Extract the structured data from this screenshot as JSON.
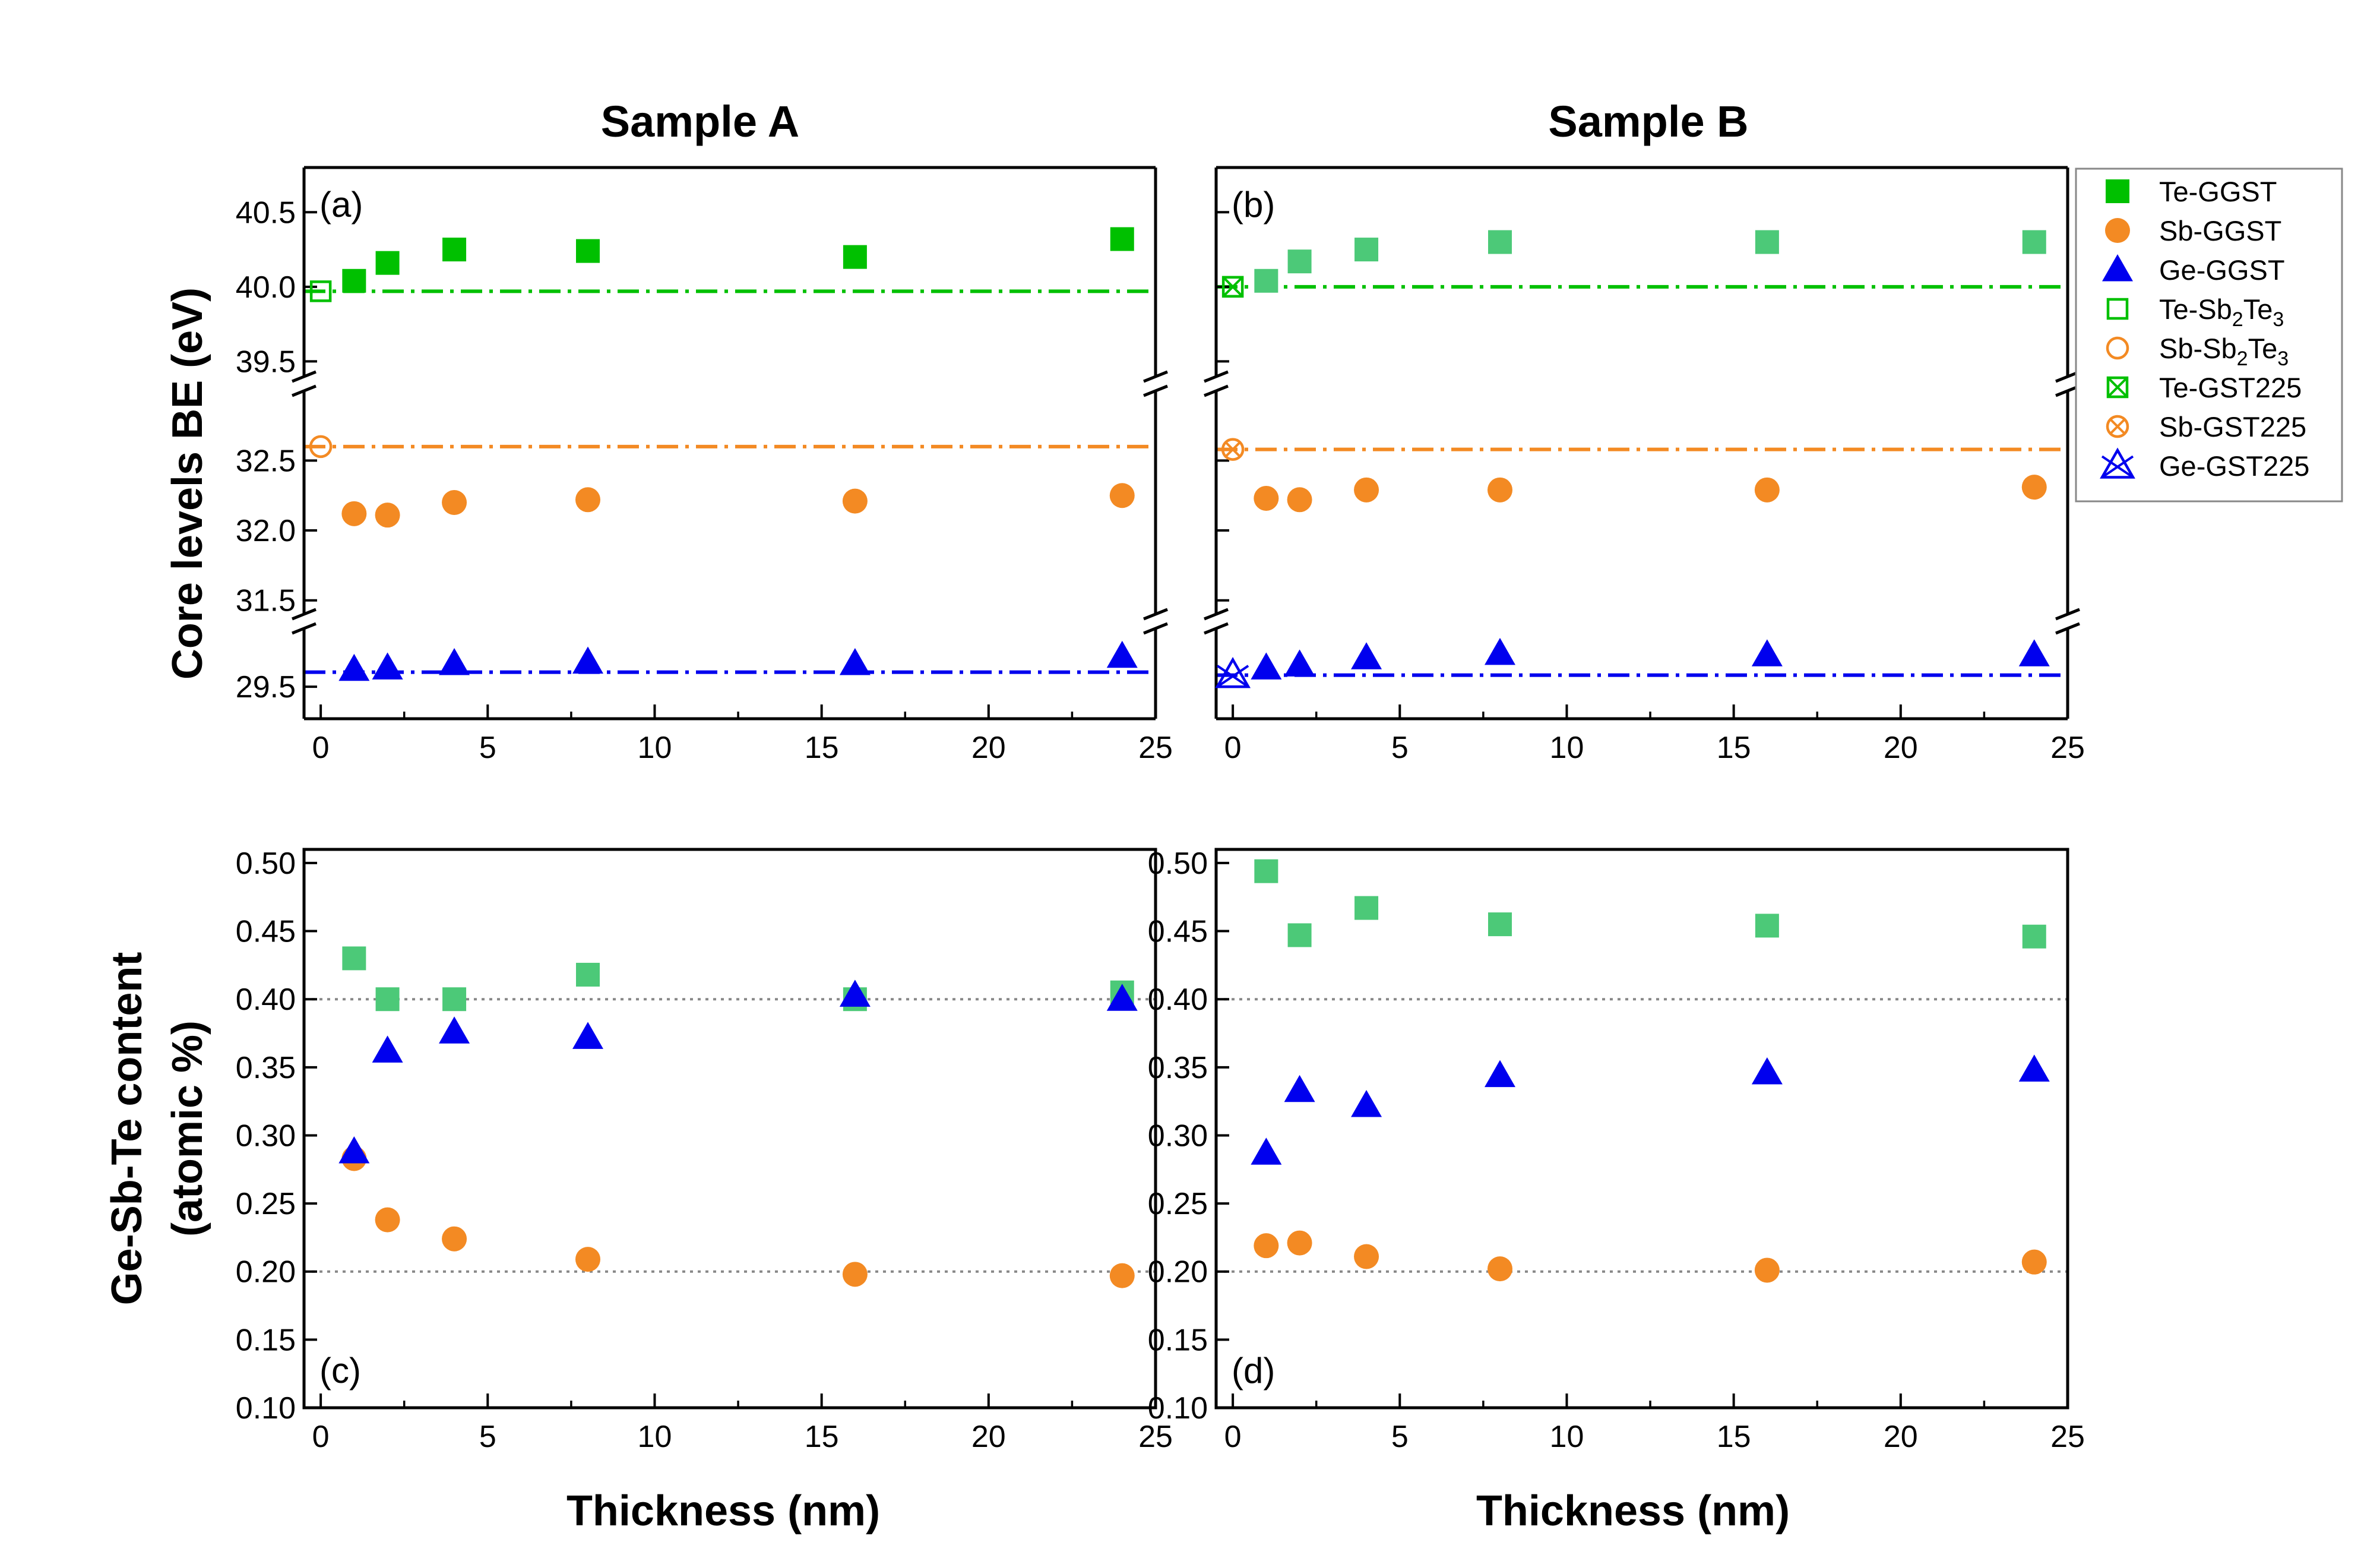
{
  "titles": {
    "sample_a": "Sample A",
    "sample_b": "Sample B"
  },
  "labels": {
    "core_y": "Core levels BE (eV)",
    "content_y1": "Ge-Sb-Te content",
    "content_y2": "(atomic %)",
    "x": "Thickness (nm)",
    "panel_a": "(a)",
    "panel_b": "(b)",
    "panel_c": "(c)",
    "panel_d": "(d)"
  },
  "legend": [
    {
      "name": "Te-GGST",
      "base": "Te-GGST",
      "marker": "square-filled",
      "color": "#00c000"
    },
    {
      "name": "Sb-GGST",
      "base": "Sb-GGST",
      "marker": "circle-filled",
      "color": "#f38a23"
    },
    {
      "name": "Ge-GGST",
      "base": "Ge-GGST",
      "marker": "triangle-filled",
      "color": "#0000ee"
    },
    {
      "name": "Te-Sb2Te3",
      "base": "Te-Sb",
      "sub1": "2",
      "mid": "Te",
      "sub2": "3",
      "marker": "square-open",
      "color": "#00c000"
    },
    {
      "name": "Sb-Sb2Te3",
      "base": "Sb-Sb",
      "sub1": "2",
      "mid": "Te",
      "sub2": "3",
      "marker": "circle-open",
      "color": "#f38a23"
    },
    {
      "name": "Te-GST225",
      "base": "Te-GST225",
      "marker": "square-x",
      "color": "#00c000"
    },
    {
      "name": "Sb-GST225",
      "base": "Sb-GST225",
      "marker": "circle-x",
      "color": "#f38a23"
    },
    {
      "name": "Ge-GST225",
      "base": "Ge-GST225",
      "marker": "triangle-x",
      "color": "#0000ee"
    }
  ],
  "chart_data": [
    {
      "panel": "(a)",
      "title": "Sample A",
      "type": "scatter",
      "xlabel": "Thickness (nm)",
      "ylabel": "Core levels BE (eV)",
      "xlim": [
        -0.5,
        25
      ],
      "xticks": [
        0,
        5,
        10,
        15,
        20,
        25
      ],
      "segments": [
        {
          "name": "Te",
          "ylim": [
            39.35,
            40.8
          ],
          "yticks": [
            40.5,
            40.0,
            39.5
          ]
        },
        {
          "name": "Sb",
          "ylim": [
            31.35,
            33.05
          ],
          "yticks": [
            32.5,
            32.0,
            31.5
          ]
        },
        {
          "name": "Ge",
          "ylim": [
            29.28,
            29.95
          ],
          "yticks": [
            29.5
          ]
        }
      ],
      "series": [
        {
          "name": "Te-GGST",
          "segment": "Te",
          "marker": "square-filled",
          "color": "#00c000",
          "x": [
            1,
            2,
            4,
            8,
            16,
            24
          ],
          "y": [
            40.04,
            40.16,
            40.25,
            40.24,
            40.2,
            40.32
          ]
        },
        {
          "name": "Te-Sb2Te3",
          "segment": "Te",
          "marker": "square-open",
          "color": "#00c000",
          "x": [
            0
          ],
          "y": [
            39.97
          ]
        },
        {
          "name": "Sb-GGST",
          "segment": "Sb",
          "marker": "circle-filled",
          "color": "#f38a23",
          "x": [
            1,
            2,
            4,
            8,
            16,
            24
          ],
          "y": [
            32.12,
            32.11,
            32.2,
            32.22,
            32.21,
            32.25
          ]
        },
        {
          "name": "Sb-Sb2Te3",
          "segment": "Sb",
          "marker": "circle-open",
          "color": "#f38a23",
          "x": [
            0
          ],
          "y": [
            32.6
          ]
        },
        {
          "name": "Ge-GGST",
          "segment": "Ge",
          "marker": "triangle-filled",
          "color": "#0000ee",
          "x": [
            1,
            2,
            4,
            8,
            16,
            24
          ],
          "y": [
            29.62,
            29.63,
            29.66,
            29.67,
            29.66,
            29.71
          ]
        }
      ],
      "reference_lines": [
        {
          "segment": "Te",
          "y": 39.97,
          "color": "#00c000",
          "style": "dash-dot"
        },
        {
          "segment": "Sb",
          "y": 32.6,
          "color": "#f38a23",
          "style": "dash-dot"
        },
        {
          "segment": "Ge",
          "y": 29.6,
          "color": "#0000ee",
          "style": "dash-dot"
        }
      ]
    },
    {
      "panel": "(b)",
      "title": "Sample B",
      "type": "scatter",
      "xlabel": "",
      "ylabel": "",
      "xlim": [
        -0.5,
        25
      ],
      "xticks": [
        0,
        5,
        10,
        15,
        20,
        25
      ],
      "segments": [
        {
          "name": "Te",
          "ylim": [
            39.35,
            40.8
          ],
          "yticks": [
            40.5,
            40.0,
            39.5
          ]
        },
        {
          "name": "Sb",
          "ylim": [
            31.35,
            33.05
          ],
          "yticks": [
            32.5,
            32.0,
            31.5
          ]
        },
        {
          "name": "Ge",
          "ylim": [
            29.28,
            29.95
          ],
          "yticks": [
            29.5
          ]
        }
      ],
      "series": [
        {
          "name": "Te-GGST",
          "segment": "Te",
          "marker": "square-filled",
          "color": "#4cc978",
          "x": [
            1,
            2,
            4,
            8,
            16,
            24
          ],
          "y": [
            40.04,
            40.17,
            40.25,
            40.3,
            40.3,
            40.3
          ]
        },
        {
          "name": "Te-GST225",
          "segment": "Te",
          "marker": "square-x",
          "color": "#00c000",
          "x": [
            0
          ],
          "y": [
            40.0
          ]
        },
        {
          "name": "Sb-GGST",
          "segment": "Sb",
          "marker": "circle-filled",
          "color": "#f38a23",
          "x": [
            1,
            2,
            4,
            8,
            16,
            24
          ],
          "y": [
            32.23,
            32.22,
            32.29,
            32.29,
            32.29,
            32.31
          ]
        },
        {
          "name": "Sb-GST225",
          "segment": "Sb",
          "marker": "circle-x",
          "color": "#f38a23",
          "x": [
            0
          ],
          "y": [
            32.58
          ]
        },
        {
          "name": "Ge-GGST",
          "segment": "Ge",
          "marker": "triangle-filled",
          "color": "#0000ee",
          "x": [
            1,
            2,
            4,
            8,
            16,
            24
          ],
          "y": [
            29.63,
            29.65,
            29.7,
            29.73,
            29.72,
            29.72
          ]
        },
        {
          "name": "Ge-GST225",
          "segment": "Ge",
          "marker": "triangle-x",
          "color": "#0000ee",
          "x": [
            0
          ],
          "y": [
            29.58
          ]
        }
      ],
      "reference_lines": [
        {
          "segment": "Te",
          "y": 40.0,
          "color": "#00c000",
          "style": "dash-dot"
        },
        {
          "segment": "Sb",
          "y": 32.58,
          "color": "#f38a23",
          "style": "dash-dot"
        },
        {
          "segment": "Ge",
          "y": 29.58,
          "color": "#0000ee",
          "style": "dash-dot"
        }
      ]
    },
    {
      "panel": "(c)",
      "title": "",
      "type": "scatter",
      "xlabel": "Thickness (nm)",
      "ylabel": "Ge-Sb-Te content (atomic %)",
      "xlim": [
        -0.5,
        25
      ],
      "ylim": [
        0.1,
        0.51
      ],
      "xticks": [
        0,
        5,
        10,
        15,
        20,
        25
      ],
      "yticks": [
        0.1,
        0.15,
        0.2,
        0.25,
        0.3,
        0.35,
        0.4,
        0.45,
        0.5
      ],
      "series": [
        {
          "name": "Te-GGST",
          "marker": "square-filled",
          "color": "#4cc978",
          "x": [
            1,
            2,
            4,
            8,
            16,
            24
          ],
          "y": [
            0.43,
            0.4,
            0.4,
            0.418,
            0.4,
            0.405
          ]
        },
        {
          "name": "Sb-GGST",
          "marker": "circle-filled",
          "color": "#f38a23",
          "x": [
            1,
            2,
            4,
            8,
            16,
            24
          ],
          "y": [
            0.283,
            0.238,
            0.224,
            0.209,
            0.198,
            0.197
          ]
        },
        {
          "name": "Ge-GGST",
          "marker": "triangle-filled",
          "color": "#0000ee",
          "x": [
            1,
            2,
            4,
            8,
            16,
            24
          ],
          "y": [
            0.288,
            0.362,
            0.376,
            0.372,
            0.403,
            0.4
          ]
        }
      ],
      "reference_lines": [
        {
          "y": 0.4,
          "color": "#888888",
          "style": "dotted"
        },
        {
          "y": 0.2,
          "color": "#888888",
          "style": "dotted"
        }
      ]
    },
    {
      "panel": "(d)",
      "title": "",
      "type": "scatter",
      "xlabel": "Thickness (nm)",
      "ylabel": "",
      "xlim": [
        -0.5,
        25
      ],
      "ylim": [
        0.1,
        0.51
      ],
      "xticks": [
        0,
        5,
        10,
        15,
        20,
        25
      ],
      "yticks": [
        0.1,
        0.15,
        0.2,
        0.25,
        0.3,
        0.35,
        0.4,
        0.45,
        0.5
      ],
      "series": [
        {
          "name": "Te-GGST",
          "marker": "square-filled",
          "color": "#4cc978",
          "x": [
            1,
            2,
            4,
            8,
            16,
            24
          ],
          "y": [
            0.494,
            0.447,
            0.467,
            0.455,
            0.454,
            0.446
          ]
        },
        {
          "name": "Sb-GGST",
          "marker": "circle-filled",
          "color": "#f38a23",
          "x": [
            1,
            2,
            4,
            8,
            16,
            24
          ],
          "y": [
            0.219,
            0.221,
            0.211,
            0.202,
            0.201,
            0.207
          ]
        },
        {
          "name": "Ge-GGST",
          "marker": "triangle-filled",
          "color": "#0000ee",
          "x": [
            1,
            2,
            4,
            8,
            16,
            24
          ],
          "y": [
            0.287,
            0.333,
            0.322,
            0.344,
            0.346,
            0.348
          ]
        }
      ],
      "reference_lines": [
        {
          "y": 0.4,
          "color": "#888888",
          "style": "dotted"
        },
        {
          "y": 0.2,
          "color": "#888888",
          "style": "dotted"
        }
      ]
    }
  ]
}
